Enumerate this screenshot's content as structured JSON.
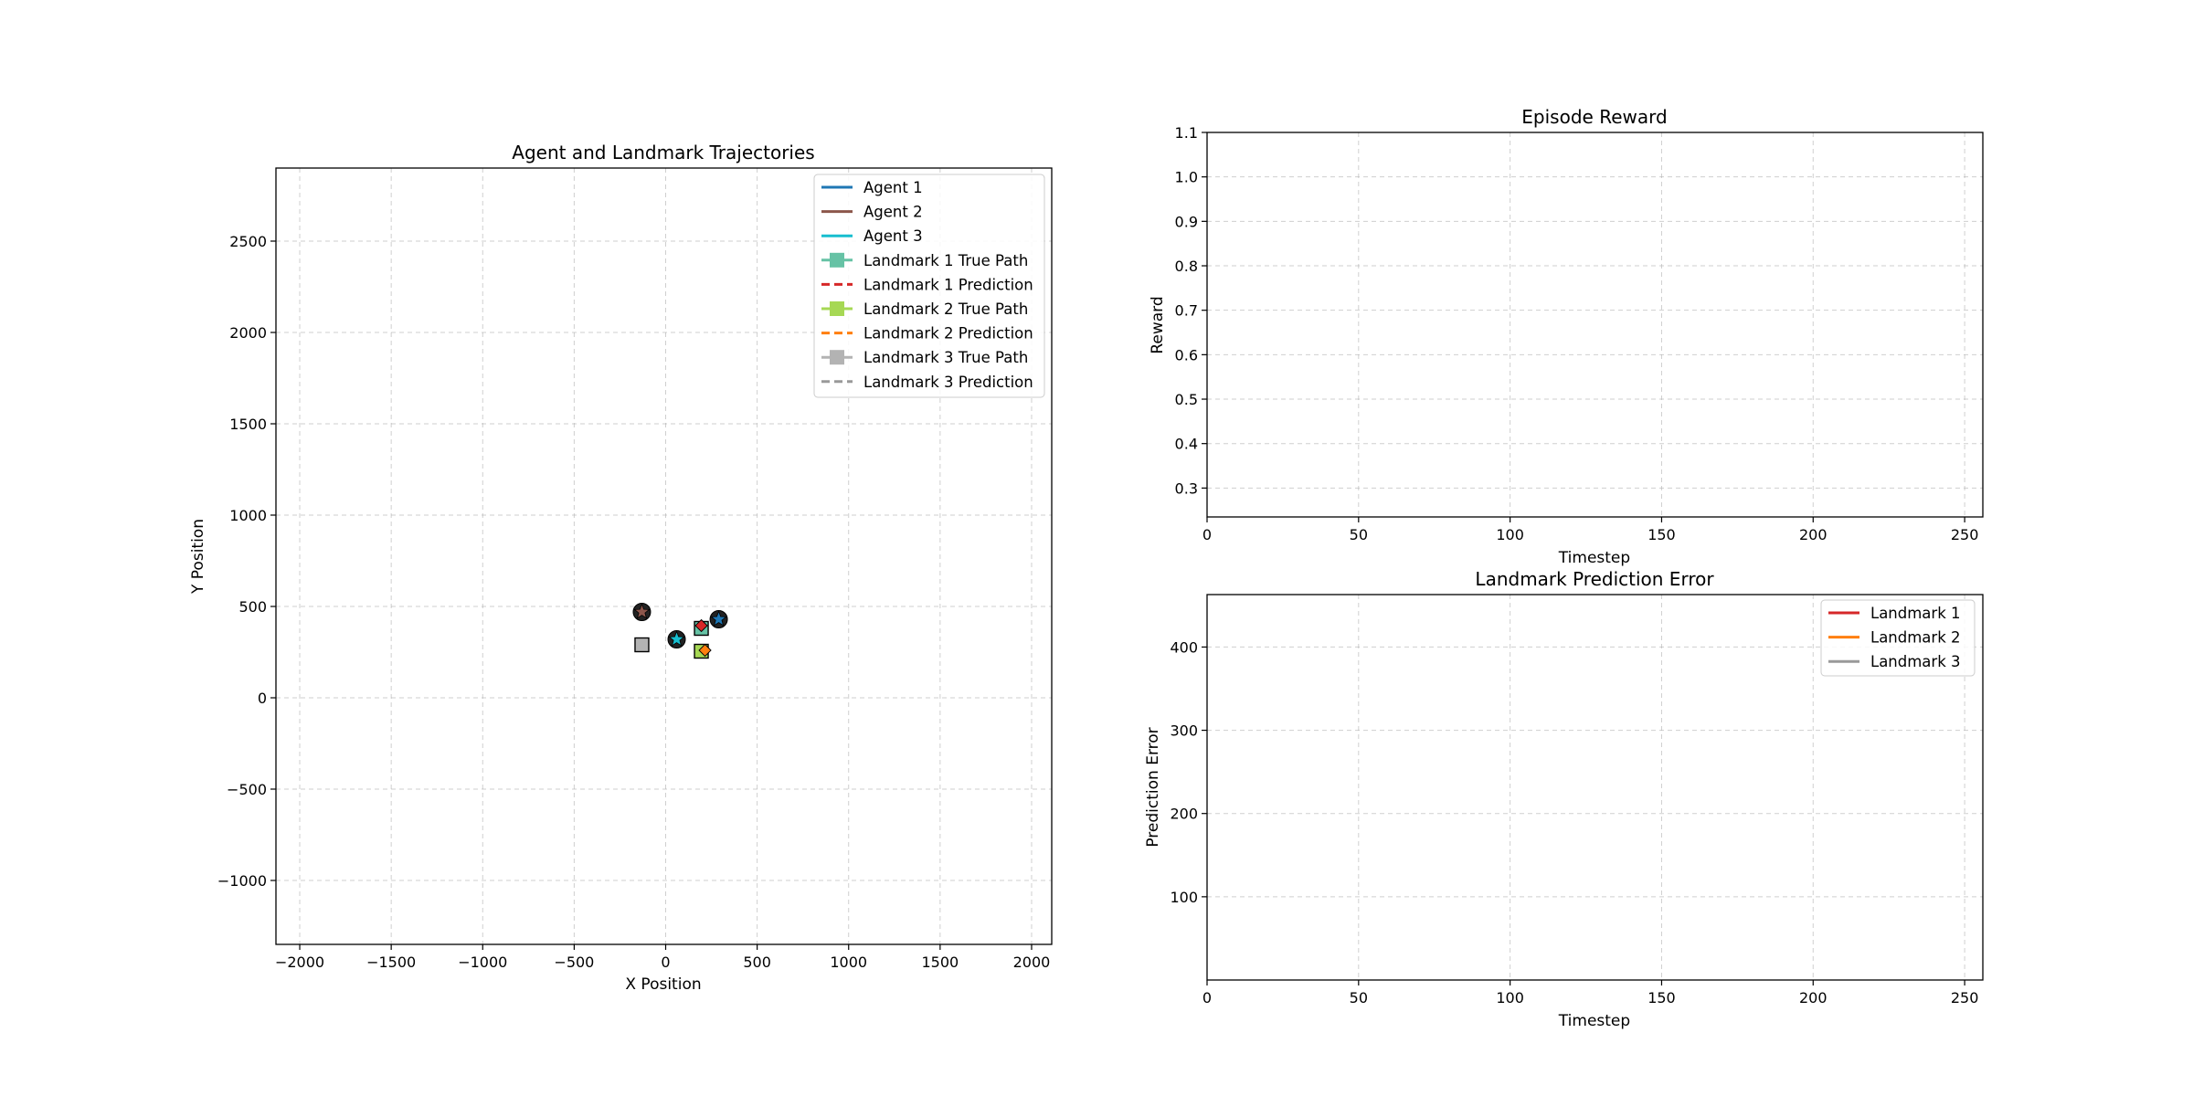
{
  "colors": {
    "agent_1": "#1f77b4",
    "agent_2": "#8c564b",
    "agent_3": "#17becf",
    "landmark_1_true": "#66c2a5",
    "landmark_1_pred": "#d62728",
    "landmark_2_true": "#a6d854",
    "landmark_2_pred": "#ff7f0e",
    "landmark_3_true": "#b3b3b3",
    "landmark_3_pred": "#999999",
    "error_1": "#d62728",
    "error_2": "#ff7f0e",
    "error_3": "#999999"
  },
  "chart_data": [
    {
      "type": "scatter",
      "title": "Agent and Landmark Trajectories",
      "xlabel": "X Position",
      "ylabel": "Y Position",
      "xlim": [
        -2130,
        2110
      ],
      "ylim": [
        -1350,
        2900
      ],
      "xticks": [
        -2000,
        -1500,
        -1000,
        -500,
        0,
        500,
        1000,
        1500,
        2000
      ],
      "xtick_labels": [
        "−2000",
        "−1500",
        "−1000",
        "−500",
        "0",
        "500",
        "1000",
        "1500",
        "2000"
      ],
      "yticks": [
        -1000,
        -500,
        0,
        500,
        1000,
        1500,
        2000,
        2500
      ],
      "ytick_labels": [
        "−1000",
        "−500",
        "0",
        "500",
        "1000",
        "1500",
        "2000",
        "2500"
      ],
      "grid": true,
      "legend_position": "upper right",
      "legend": [
        {
          "label": "Agent 1",
          "style": "line",
          "color_key": "agent_1"
        },
        {
          "label": "Agent 2",
          "style": "line",
          "color_key": "agent_2"
        },
        {
          "label": "Agent 3",
          "style": "line",
          "color_key": "agent_3"
        },
        {
          "label": "Landmark 1 True Path",
          "style": "line-square",
          "color_key": "landmark_1_true"
        },
        {
          "label": "Landmark 1 Prediction",
          "style": "dashed",
          "color_key": "landmark_1_pred"
        },
        {
          "label": "Landmark 2 True Path",
          "style": "line-square",
          "color_key": "landmark_2_true"
        },
        {
          "label": "Landmark 2 Prediction",
          "style": "dashed",
          "color_key": "landmark_2_pred"
        },
        {
          "label": "Landmark 3 True Path",
          "style": "line-square",
          "color_key": "landmark_3_true"
        },
        {
          "label": "Landmark 3 Prediction",
          "style": "dashed",
          "color_key": "landmark_3_pred"
        }
      ],
      "points": [
        {
          "series": "Agent 1",
          "marker": "circle-star",
          "color_key": "agent_1",
          "x": 290,
          "y": 430
        },
        {
          "series": "Agent 2",
          "marker": "circle-star",
          "color_key": "agent_2",
          "x": -130,
          "y": 470
        },
        {
          "series": "Agent 3",
          "marker": "circle-star",
          "color_key": "agent_3",
          "x": 60,
          "y": 320
        },
        {
          "series": "Landmark 1 True Path",
          "marker": "square",
          "color_key": "landmark_1_true",
          "x": 195,
          "y": 380
        },
        {
          "series": "Landmark 1 Prediction",
          "marker": "diamond",
          "color_key": "landmark_1_pred",
          "x": 195,
          "y": 395
        },
        {
          "series": "Landmark 2 True Path",
          "marker": "square",
          "color_key": "landmark_2_true",
          "x": 195,
          "y": 255
        },
        {
          "series": "Landmark 2 Prediction",
          "marker": "diamond",
          "color_key": "landmark_2_pred",
          "x": 215,
          "y": 260
        },
        {
          "series": "Landmark 3 True Path",
          "marker": "square",
          "color_key": "landmark_3_true",
          "x": -130,
          "y": 290
        }
      ]
    },
    {
      "type": "line",
      "title": "Episode Reward",
      "xlabel": "Timestep",
      "ylabel": "Reward",
      "xlim": [
        0,
        256
      ],
      "ylim": [
        0.235,
        1.1
      ],
      "xticks": [
        0,
        50,
        100,
        150,
        200,
        250
      ],
      "xtick_labels": [
        "0",
        "50",
        "100",
        "150",
        "200",
        "250"
      ],
      "yticks": [
        0.3,
        0.4,
        0.5,
        0.6,
        0.7,
        0.8,
        0.9,
        1.0,
        1.1
      ],
      "ytick_labels": [
        "0.3",
        "0.4",
        "0.5",
        "0.6",
        "0.7",
        "0.8",
        "0.9",
        "1.0",
        "1.1"
      ],
      "grid": true,
      "series": []
    },
    {
      "type": "line",
      "title": "Landmark Prediction Error",
      "xlabel": "Timestep",
      "ylabel": "Prediction Error",
      "xlim": [
        0,
        256
      ],
      "ylim": [
        0,
        463
      ],
      "xticks": [
        0,
        50,
        100,
        150,
        200,
        250
      ],
      "xtick_labels": [
        "0",
        "50",
        "100",
        "150",
        "200",
        "250"
      ],
      "yticks": [
        100,
        200,
        300,
        400
      ],
      "ytick_labels": [
        "100",
        "200",
        "300",
        "400"
      ],
      "grid": true,
      "legend_position": "upper right",
      "legend": [
        {
          "label": "Landmark 1",
          "style": "line",
          "color_key": "error_1"
        },
        {
          "label": "Landmark 2",
          "style": "line",
          "color_key": "error_2"
        },
        {
          "label": "Landmark 3",
          "style": "line",
          "color_key": "error_3"
        }
      ],
      "series": []
    }
  ]
}
